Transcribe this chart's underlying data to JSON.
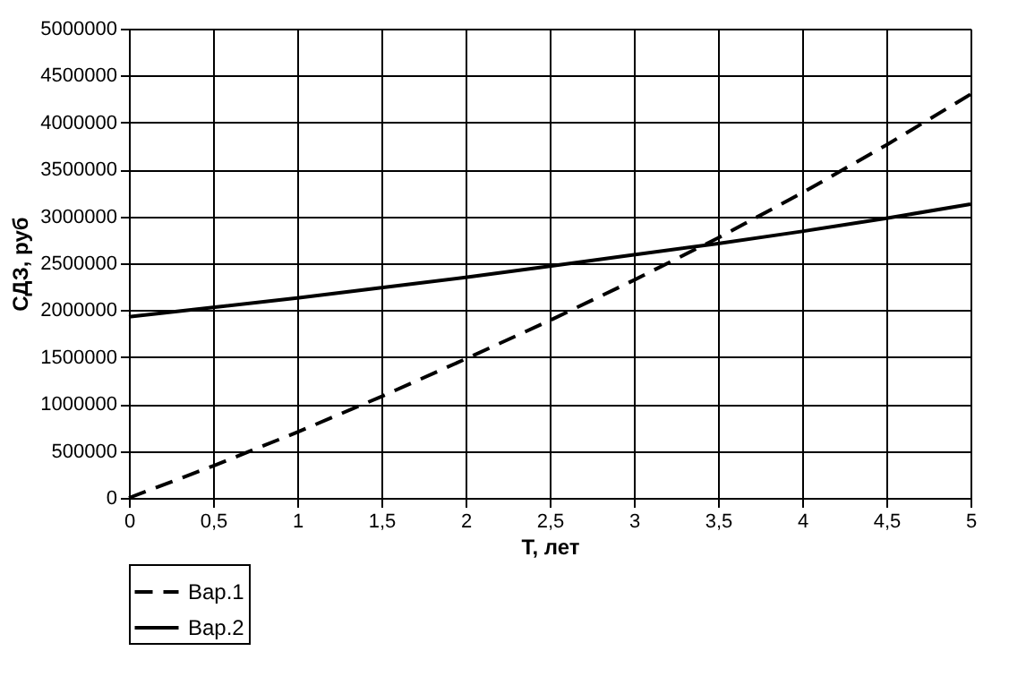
{
  "chart_data": {
    "type": "line",
    "xlabel": "T, лет",
    "ylabel": "СДЗ, руб",
    "x": [
      0,
      0.5,
      1,
      1.5,
      2,
      2.5,
      3,
      3.5,
      4,
      4.5,
      5
    ],
    "series": [
      {
        "name": "Вар.1",
        "color": "#000000",
        "line_style": "dashed",
        "values": [
          0,
          340000,
          700000,
          1080000,
          1480000,
          1890000,
          2320000,
          2770000,
          3250000,
          3760000,
          4300000
        ]
      },
      {
        "name": "Вар.2",
        "color": "#000000",
        "line_style": "solid",
        "values": [
          1930000,
          2030000,
          2130000,
          2240000,
          2350000,
          2470000,
          2590000,
          2710000,
          2840000,
          2980000,
          3130000
        ]
      }
    ],
    "xlim": [
      0,
      5
    ],
    "xticks": [
      0,
      {
        "value": 0.5,
        "label": "0,5"
      },
      1,
      {
        "value": 1.5,
        "label": "1,5"
      },
      2,
      {
        "value": 2.5,
        "label": "2,5"
      },
      3,
      {
        "value": 3.5,
        "label": "3,5"
      },
      4,
      {
        "value": 4.5,
        "label": "4,5"
      },
      5
    ],
    "ylim": [
      0,
      5000000
    ],
    "yticks": [
      0,
      500000,
      1000000,
      1500000,
      2000000,
      2500000,
      3000000,
      3500000,
      4000000,
      4500000,
      5000000
    ],
    "grid": true,
    "legend": "bottom",
    "marker": "none"
  }
}
